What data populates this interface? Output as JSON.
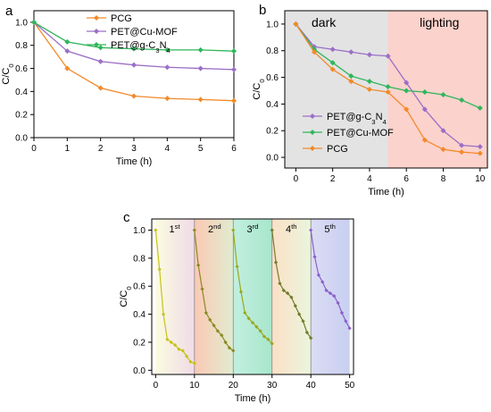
{
  "chart_data": [
    {
      "panel": "a",
      "type": "line",
      "xlabel": "Time (h)",
      "ylabel": "C/C",
      "ylabel_sub": "0",
      "xlim": [
        0,
        6
      ],
      "ylim": [
        0,
        1.1
      ],
      "xticks": [
        0,
        1,
        2,
        3,
        4,
        5,
        6
      ],
      "yticks": [
        0.0,
        0.2,
        0.4,
        0.6,
        0.8,
        1.0
      ],
      "legend_placement": "top-center",
      "series": [
        {
          "name": "PCG",
          "color": "#f28a2a",
          "marker": "diamond",
          "x": [
            0,
            1,
            2,
            3,
            4,
            5,
            6
          ],
          "y": [
            1.0,
            0.6,
            0.43,
            0.36,
            0.34,
            0.33,
            0.32
          ]
        },
        {
          "name": "PET@Cu-MOF",
          "color": "#9b6fc7",
          "marker": "diamond",
          "x": [
            0,
            1,
            2,
            3,
            4,
            5,
            6
          ],
          "y": [
            1.0,
            0.75,
            0.66,
            0.63,
            0.61,
            0.6,
            0.59
          ]
        },
        {
          "name": "PET@g-C",
          "name_sub": "3",
          "name_tail": "N",
          "name_sub2": "4",
          "color": "#2fb65a",
          "marker": "diamond",
          "x": [
            0,
            1,
            2,
            3,
            4,
            5,
            6
          ],
          "y": [
            1.0,
            0.83,
            0.78,
            0.77,
            0.76,
            0.76,
            0.75
          ]
        }
      ]
    },
    {
      "panel": "b",
      "type": "line",
      "xlabel": "Time (h)",
      "ylabel": "C/C",
      "ylabel_sub": "0",
      "xlim": [
        -0.6,
        10.4
      ],
      "ylim": [
        -0.08,
        1.1
      ],
      "xticks": [
        0,
        2,
        4,
        6,
        8,
        10
      ],
      "yticks": [
        0.0,
        0.2,
        0.4,
        0.6,
        0.8,
        1.0
      ],
      "regions": [
        {
          "label": "dark",
          "x": [
            -0.6,
            5
          ],
          "color": "#e3e3e3"
        },
        {
          "label": "lighting",
          "x": [
            5,
            10.4
          ],
          "color": "#fbd2cc"
        }
      ],
      "legend_placement": "bottom-left",
      "series": [
        {
          "name": "PET@g-C",
          "name_sub": "3",
          "name_tail": "N",
          "name_sub2": "4",
          "color": "#9b6fc7",
          "marker": "diamond",
          "x": [
            0,
            1,
            2,
            3,
            4,
            5,
            6,
            7,
            8,
            9,
            10
          ],
          "y": [
            1.0,
            0.83,
            0.81,
            0.79,
            0.77,
            0.76,
            0.56,
            0.36,
            0.2,
            0.09,
            0.08
          ]
        },
        {
          "name": "PET@Cu-MOF",
          "color": "#2fb65a",
          "marker": "diamond",
          "x": [
            0,
            1,
            2,
            3,
            4,
            5,
            6,
            7,
            8,
            9,
            10
          ],
          "y": [
            1.0,
            0.81,
            0.71,
            0.61,
            0.57,
            0.53,
            0.5,
            0.49,
            0.47,
            0.43,
            0.37
          ]
        },
        {
          "name": "PCG",
          "color": "#f28a2a",
          "marker": "diamond",
          "x": [
            0,
            1,
            2,
            3,
            4,
            5,
            6,
            7,
            8,
            9,
            10
          ],
          "y": [
            1.0,
            0.79,
            0.66,
            0.57,
            0.51,
            0.49,
            0.36,
            0.13,
            0.06,
            0.04,
            0.03
          ]
        }
      ]
    },
    {
      "panel": "c",
      "type": "line",
      "xlabel": "Time (h)",
      "ylabel": "C/C",
      "ylabel_sub": "0",
      "xlim": [
        -1,
        51
      ],
      "ylim": [
        -0.03,
        1.08
      ],
      "xticks": [
        0,
        10,
        20,
        30,
        40,
        50
      ],
      "yticks": [
        0.0,
        0.2,
        0.4,
        0.6,
        0.8,
        1.0
      ],
      "cycles": [
        {
          "label": "1",
          "sup": "st",
          "x": [
            0,
            10
          ],
          "colors": [
            "#fbfbe0",
            "#f0dbe8"
          ]
        },
        {
          "label": "2",
          "sup": "nd",
          "x": [
            10,
            20
          ],
          "colors": [
            "#fbc9b4",
            "#e0ecd0"
          ]
        },
        {
          "label": "3",
          "sup": "rd",
          "x": [
            20,
            30
          ],
          "colors": [
            "#c2efe0",
            "#a8e6cc"
          ]
        },
        {
          "label": "4",
          "sup": "th",
          "x": [
            30,
            40
          ],
          "colors": [
            "#fbe0c6",
            "#eaf5dd"
          ]
        },
        {
          "label": "5",
          "sup": "th",
          "x": [
            40,
            50
          ],
          "colors": [
            "#dcdcf4",
            "#c8cff0"
          ]
        }
      ],
      "series": [
        {
          "name": "cycle 1",
          "color": "#c6c21a",
          "x": [
            0,
            1,
            2,
            3,
            4,
            5,
            6,
            7,
            8,
            9,
            10
          ],
          "y": [
            1.0,
            0.72,
            0.4,
            0.22,
            0.2,
            0.18,
            0.15,
            0.14,
            0.1,
            0.06,
            0.05
          ]
        },
        {
          "name": "cycle 2",
          "color": "#8a8a22",
          "x": [
            10,
            11,
            12,
            13,
            14,
            15,
            16,
            17,
            18,
            19,
            20
          ],
          "y": [
            1.0,
            0.75,
            0.58,
            0.41,
            0.36,
            0.32,
            0.28,
            0.25,
            0.2,
            0.16,
            0.14
          ]
        },
        {
          "name": "cycle 3",
          "color": "#9aa81e",
          "x": [
            20,
            21,
            22,
            23,
            24,
            25,
            26,
            27,
            28,
            29,
            30
          ],
          "y": [
            1.0,
            0.74,
            0.56,
            0.41,
            0.37,
            0.34,
            0.31,
            0.28,
            0.24,
            0.22,
            0.19
          ]
        },
        {
          "name": "cycle 4",
          "color": "#6e7d2a",
          "x": [
            30,
            31,
            32,
            33,
            34,
            35,
            36,
            37,
            38,
            39,
            40
          ],
          "y": [
            1.0,
            0.77,
            0.62,
            0.57,
            0.55,
            0.52,
            0.46,
            0.4,
            0.35,
            0.27,
            0.23
          ]
        },
        {
          "name": "cycle 5",
          "color": "#8a5fc9",
          "x": [
            40,
            41,
            42,
            43,
            44,
            45,
            46,
            47,
            48,
            49,
            50
          ],
          "y": [
            1.0,
            0.81,
            0.68,
            0.63,
            0.57,
            0.55,
            0.53,
            0.48,
            0.41,
            0.35,
            0.3
          ]
        }
      ]
    }
  ]
}
